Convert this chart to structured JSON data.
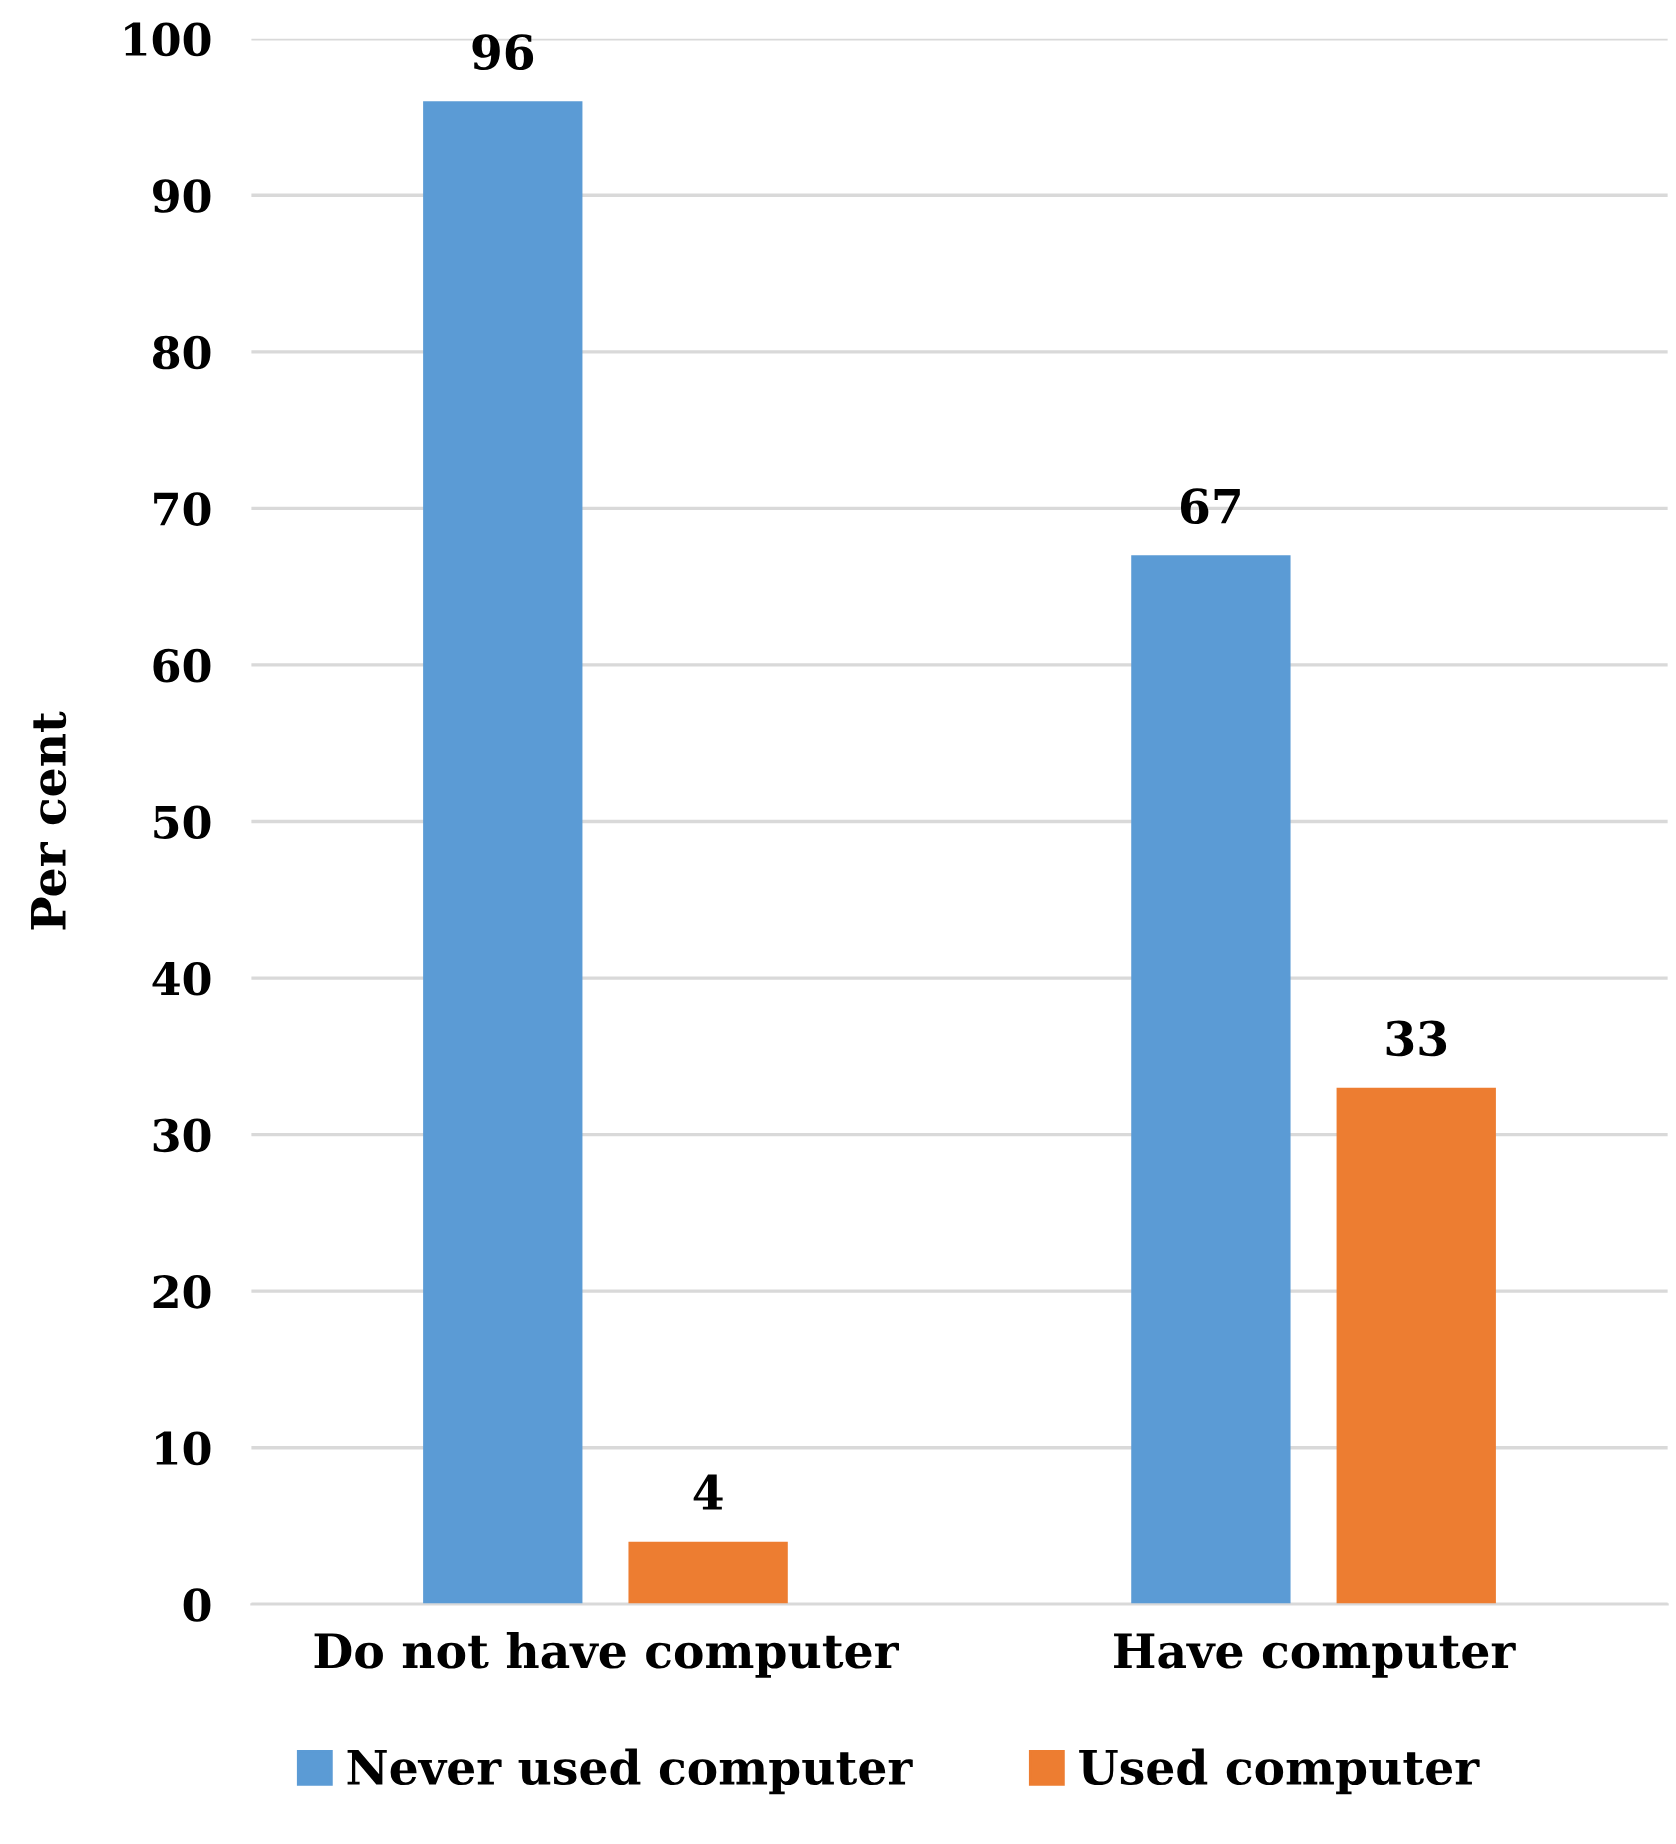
{
  "chart_data": {
    "type": "bar",
    "ylabel": "Per cent",
    "categories": [
      "Do not have computer",
      "Have computer"
    ],
    "series": [
      {
        "name": "Never used computer",
        "color": "#5b9bd5",
        "values": [
          96,
          67
        ]
      },
      {
        "name": "Used computer",
        "color": "#ed7d31",
        "values": [
          4,
          33
        ]
      }
    ],
    "ylim": [
      0,
      100
    ],
    "yticks": [
      0,
      10,
      20,
      30,
      40,
      50,
      60,
      70,
      80,
      90,
      100
    ],
    "grid": "y",
    "legend": "bottom",
    "data_labels": true
  }
}
